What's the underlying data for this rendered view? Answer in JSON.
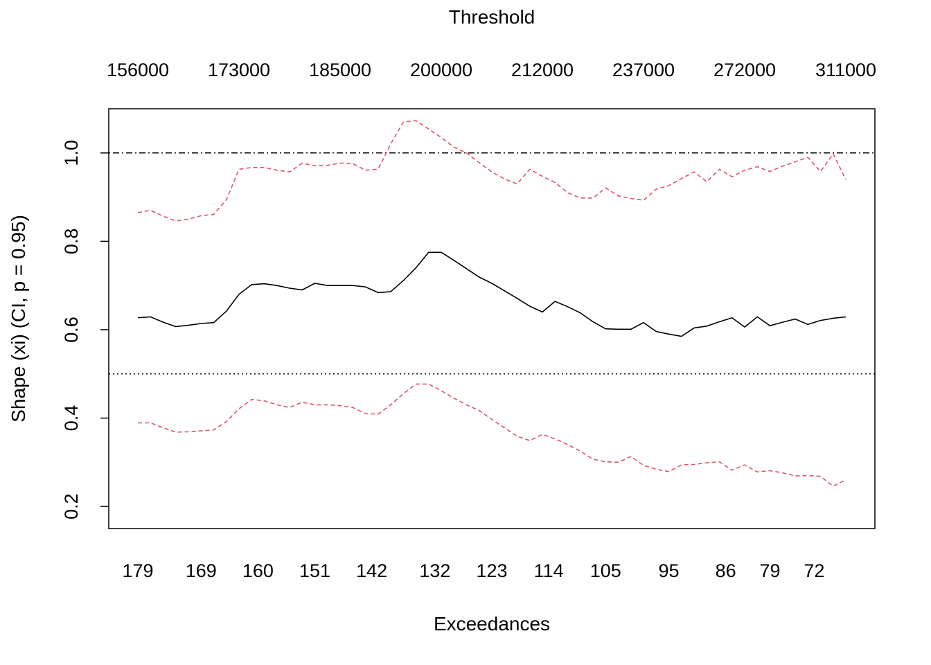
{
  "chart_data": {
    "type": "line",
    "top_axis_title": "Threshold",
    "top_tick_labels": [
      "156000",
      "173000",
      "185000",
      "200000",
      "212000",
      "237000",
      "272000",
      "311000"
    ],
    "xlabel": "Exceedances",
    "x_tick_labels": [
      "179",
      "169",
      "160",
      "151",
      "142",
      "132",
      "123",
      "114",
      "105",
      "95",
      "86",
      "79",
      "72"
    ],
    "x_tick_values": [
      179,
      169,
      160,
      151,
      142,
      132,
      123,
      114,
      105,
      95,
      86,
      79,
      72
    ],
    "ylabel": "Shape (xi) (CI, p = 0.95)",
    "y_tick_labels": [
      "0.2",
      "0.4",
      "0.6",
      "0.8",
      "1.0"
    ],
    "y_tick_values": [
      0.2,
      0.4,
      0.6,
      0.8,
      1.0
    ],
    "xlim": [
      184,
      62
    ],
    "ylim": [
      0.15,
      1.1
    ],
    "reference_lines": [
      {
        "y": 1.0,
        "style": "dashdot",
        "color": "#000000"
      },
      {
        "y": 0.5,
        "style": "dotted",
        "color": "#000000"
      }
    ],
    "x": [
      179,
      177,
      175,
      173,
      171,
      169,
      167,
      165,
      163,
      161,
      159,
      157,
      155,
      153,
      151,
      149,
      147,
      145,
      143,
      141,
      139,
      137,
      135,
      133,
      131,
      129,
      127,
      125,
      123,
      121,
      119,
      117,
      115,
      113,
      111,
      109,
      107,
      105,
      103,
      101,
      99,
      97,
      95,
      93,
      91,
      89,
      87,
      85,
      83,
      81,
      79,
      77,
      75,
      73,
      71,
      69,
      67
    ],
    "series": [
      {
        "color": "#000000",
        "style": "solid",
        "values": [
          0.627,
          0.629,
          0.617,
          0.607,
          0.61,
          0.614,
          0.616,
          0.642,
          0.68,
          0.702,
          0.704,
          0.7,
          0.694,
          0.69,
          0.705,
          0.7,
          0.7,
          0.7,
          0.697,
          0.684,
          0.686,
          0.711,
          0.74,
          0.775,
          0.775,
          0.757,
          0.738,
          0.719,
          0.705,
          0.688,
          0.671,
          0.653,
          0.64,
          0.664,
          0.652,
          0.638,
          0.618,
          0.602,
          0.601,
          0.601,
          0.616,
          0.596,
          0.59,
          0.585,
          0.604,
          0.608,
          0.618,
          0.627,
          0.606,
          0.629,
          0.609,
          0.617,
          0.624,
          0.612,
          0.621,
          0.626,
          0.629
        ]
      },
      {
        "color": "#DF536B",
        "style": "dashed",
        "values": [
          0.865,
          0.87,
          0.857,
          0.846,
          0.85,
          0.858,
          0.861,
          0.894,
          0.963,
          0.967,
          0.967,
          0.961,
          0.957,
          0.977,
          0.971,
          0.972,
          0.977,
          0.976,
          0.961,
          0.963,
          1.02,
          1.07,
          1.073,
          1.054,
          1.035,
          1.013,
          1.0,
          0.978,
          0.957,
          0.941,
          0.93,
          0.963,
          0.947,
          0.933,
          0.91,
          0.898,
          0.898,
          0.921,
          0.903,
          0.897,
          0.893,
          0.918,
          0.926,
          0.942,
          0.957,
          0.935,
          0.963,
          0.946,
          0.961,
          0.969,
          0.958,
          0.97,
          0.98,
          0.99,
          0.958,
          0.998,
          0.94
        ]
      },
      {
        "color": "#DF536B",
        "style": "dashed",
        "values": [
          0.389,
          0.389,
          0.378,
          0.368,
          0.369,
          0.371,
          0.373,
          0.392,
          0.421,
          0.442,
          0.439,
          0.43,
          0.424,
          0.436,
          0.43,
          0.43,
          0.428,
          0.424,
          0.41,
          0.409,
          0.43,
          0.455,
          0.477,
          0.477,
          0.462,
          0.445,
          0.43,
          0.417,
          0.397,
          0.378,
          0.359,
          0.349,
          0.363,
          0.353,
          0.34,
          0.325,
          0.307,
          0.301,
          0.3,
          0.313,
          0.293,
          0.284,
          0.279,
          0.294,
          0.295,
          0.299,
          0.301,
          0.282,
          0.294,
          0.278,
          0.281,
          0.276,
          0.269,
          0.27,
          0.268,
          0.246,
          0.26
        ]
      }
    ]
  }
}
